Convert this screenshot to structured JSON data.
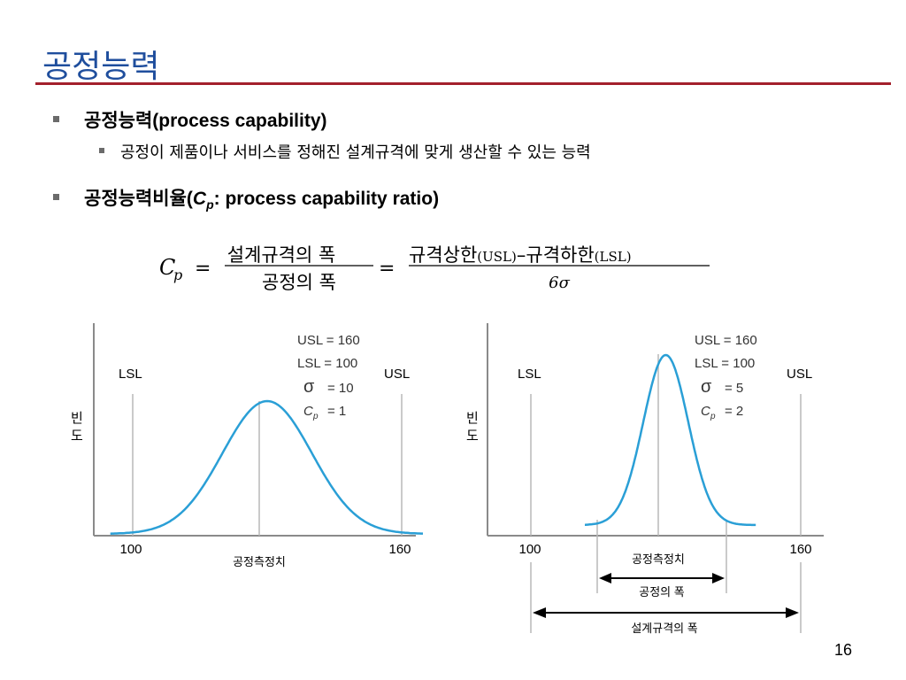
{
  "slide": {
    "title": "공정능력",
    "page_number": "16"
  },
  "bullets": {
    "b1_text": "공정능력(process capability)",
    "b1_sub": "공정이 제품이나 서비스를 정해진 설계규격에 맞게 생산할 수 있는 능력",
    "b2_prefix": "공정능력비율(",
    "b2_sym_c": "C",
    "b2_sym_p": "p",
    "b2_suffix": ": process capability ratio)"
  },
  "formula": {
    "lhs_c": "C",
    "lhs_p": "p",
    "eq": "=",
    "frac1_num": "설계규격의 폭",
    "frac1_den": "공정의 폭",
    "frac2_num_a": "규격상한",
    "frac2_num_usl": "(USL)",
    "frac2_num_dash": "–",
    "frac2_num_b": "규격하한",
    "frac2_num_lsl": "(LSL)",
    "frac2_den": "6σ"
  },
  "charts": {
    "left": {
      "lsl_label": "LSL",
      "usl_label": "USL",
      "ylabel_1": "빈",
      "ylabel_2": "도",
      "xlabel": "공정측정치",
      "tick_100": "100",
      "tick_160": "160",
      "usl_line": "USL = 160",
      "lsl_line": "LSL = 100",
      "sigma_sym": "σ",
      "sigma_val": "=   10",
      "cp_sym": "C",
      "cp_sub": "p",
      "cp_val": "=    1"
    },
    "right": {
      "lsl_label": "LSL",
      "usl_label": "USL",
      "ylabel_1": "빈",
      "ylabel_2": "도",
      "xlabel": "공정측정치",
      "tick_100": "100",
      "tick_160": "160",
      "usl_line": "USL = 160",
      "lsl_line": "LSL = 100",
      "sigma_sym": "σ",
      "sigma_val": "=    5",
      "cp_sym": "C",
      "cp_sub": "p",
      "cp_val": "=    2",
      "process_width_label": "공정의 폭",
      "spec_width_label": "설계규격의 폭"
    }
  },
  "chart_data": [
    {
      "type": "line",
      "xlabel": "공정측정치",
      "ylabel": "빈도",
      "lsl": 100,
      "usl": 160,
      "mean": 130,
      "sigma": 10,
      "cp": 1,
      "x_ticks": [
        100,
        160
      ],
      "grid": false,
      "legend": "none"
    },
    {
      "type": "line",
      "xlabel": "공정측정치",
      "ylabel": "빈도",
      "lsl": 100,
      "usl": 160,
      "mean": 130,
      "sigma": 5,
      "cp": 2,
      "x_ticks": [
        100,
        160
      ],
      "grid": false,
      "legend": "none"
    }
  ],
  "colors": {
    "title": "#1f4e9d",
    "rule": "#a3202c",
    "curve": "#2a9fd6",
    "axis": "#8a8a8a",
    "guide": "#b8b8b8"
  }
}
